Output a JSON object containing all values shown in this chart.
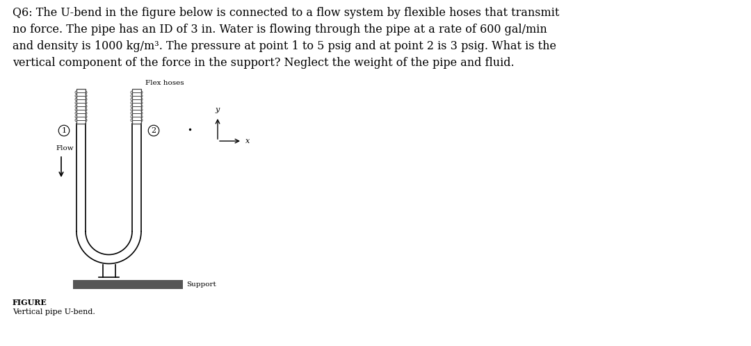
{
  "title_text": "Q6: The U-bend in the figure below is connected to a flow system by flexible hoses that transmit\nno force. The pipe has an ID of 3 in. Water is flowing through the pipe at a rate of 600 gal/min\nand density is 1000 kg/m³. The pressure at point 1 to 5 psig and at point 2 is 3 psig. What is the\nvertical component of the force in the support? Neglect the weight of the pipe and fluid.",
  "figure_label": "FIGURE",
  "figure_caption": "Vertical pipe U-bend.",
  "label_flex_hoses": "Flex hoses",
  "label_flow": "Flow",
  "label_support": "Support",
  "label_point1": "1",
  "label_point2": "2",
  "label_x": "x",
  "label_y": "y",
  "bg_color": "#ffffff",
  "pipe_color": "#000000",
  "support_bar_color": "#555555",
  "text_color": "#000000"
}
